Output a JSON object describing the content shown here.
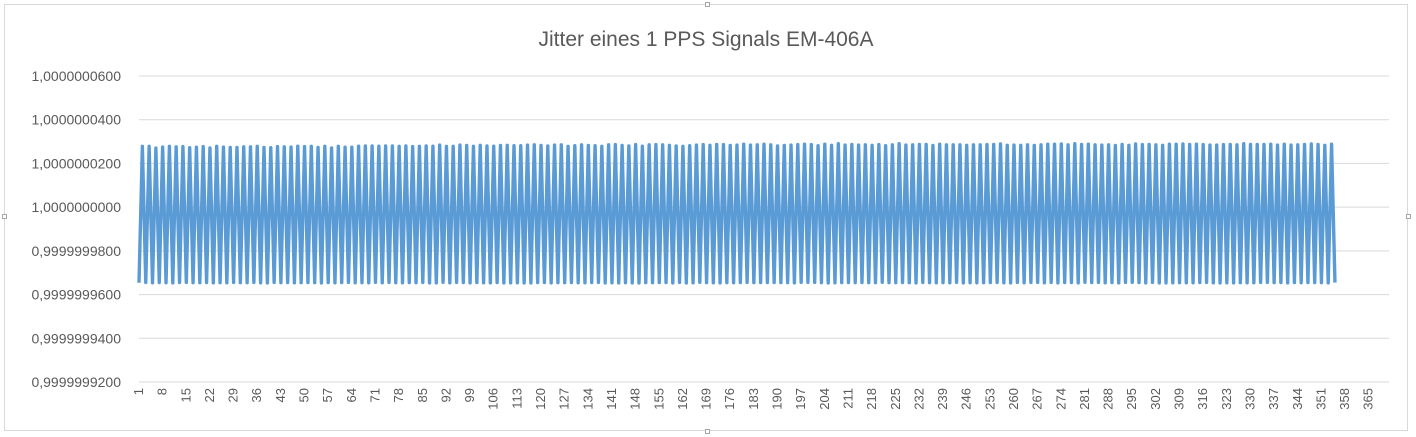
{
  "chart_data": {
    "type": "line",
    "title": "Jitter eines 1 PPS Signals EM-406A",
    "xlabel": "",
    "ylabel": "",
    "legend": "none",
    "grid": true,
    "color": "#5b9bd5",
    "ylim": [
      0.99999992,
      1.00000006
    ],
    "yticks": [
      0.99999992,
      0.99999994,
      0.99999996,
      0.99999998,
      1.0,
      1.00000002,
      1.00000004,
      1.00000006
    ],
    "ytick_labels": [
      "0,9999999200",
      "0,9999999400",
      "0,9999999600",
      "0,9999999800",
      "1,0000000000",
      "1,0000000200",
      "1,0000000400",
      "1,0000000600"
    ],
    "x_count": 371,
    "x_start": 1,
    "xtick_labels": [
      "1",
      "8",
      "15",
      "22",
      "29",
      "36",
      "43",
      "50",
      "57",
      "64",
      "71",
      "78",
      "85",
      "92",
      "99",
      "106",
      "113",
      "120",
      "127",
      "134",
      "141",
      "148",
      "155",
      "162",
      "169",
      "176",
      "183",
      "190",
      "197",
      "204",
      "211",
      "218",
      "225",
      "232",
      "239",
      "246",
      "253",
      "260",
      "267",
      "274",
      "281",
      "288",
      "295",
      "302",
      "309",
      "316",
      "323",
      "330",
      "337",
      "344",
      "351",
      "358",
      "365"
    ],
    "series": [
      {
        "values": [
          0.9999999654,
          1.0000000278,
          0.99999996552,
          1.0000000278,
          0.99999996535,
          1.000000027,
          0.99999996548,
          1.0000000275,
          0.9999999654,
          1.0000000278,
          0.99999996533,
          1.0000000276,
          0.99999996552,
          1.0000000277,
          0.99999996553,
          1.0000000272,
          0.99999996545,
          1.0000000274,
          0.99999996544,
          1.0000000277,
          0.99999996549,
          1.0000000271,
          0.99999996538,
          1.0000000278,
          0.99999996545,
          1.0000000275,
          0.99999996538,
          1.0000000273,
          0.99999996552,
          1.0000000273,
          0.99999996545,
          1.0000000276,
          0.9999999654,
          1.0000000276,
          0.99999996554,
          1.0000000278,
          0.99999996536,
          1.0000000273,
          0.99999996531,
          1.0000000272,
          0.99999996555,
          1.0000000277,
          0.99999996542,
          1.0000000276,
          0.99999996549,
          1.0000000275,
          0.99999996537,
          1.0000000279,
          0.99999996544,
          1.0000000277,
          0.99999996548,
          1.0000000278,
          0.99999996543,
          1.0000000273,
          0.9999999653,
          1.0000000278,
          0.99999996549,
          1.0000000271,
          0.99999996535,
          1.0000000278,
          0.99999996547,
          1.0000000274,
          0.99999996554,
          1.0000000274,
          0.99999996537,
          1.0000000279,
          0.9999999654,
          1.000000028,
          0.99999996536,
          1.000000028,
          0.99999996558,
          1.0000000279,
          0.99999996539,
          1.000000028,
          0.99999996557,
          1.000000028,
          0.99999996541,
          1.0000000278,
          0.99999996537,
          1.000000028,
          0.99999996551,
          1.0000000277,
          0.99999996541,
          1.0000000278,
          0.99999996552,
          1.000000028,
          0.99999996531,
          1.0000000279,
          0.99999996532,
          1.0000000284,
          0.99999996559,
          1.0000000278,
          0.99999996535,
          1.0000000278,
          0.99999996556,
          1.0000000284,
          0.99999996548,
          1.0000000282,
          0.99999996532,
          1.0000000278,
          0.9999999655,
          1.0000000283,
          0.99999996539,
          1.000000028,
          0.99999996539,
          1.0000000279,
          0.99999996551,
          1.0000000282,
          0.9999999653,
          1.0000000283,
          0.99999996535,
          1.0000000281,
          0.99999996539,
          1.0000000281,
          0.9999999653,
          1.0000000284,
          0.9999999653,
          1.0000000285,
          0.99999996546,
          1.0000000282,
          0.9999999655,
          1.000000028,
          0.99999996531,
          1.0000000284,
          0.9999999654,
          1.0000000285,
          0.99999996544,
          1.0000000278,
          0.99999996551,
          1.0000000281,
          0.99999996537,
          1.0000000285,
          0.99999996538,
          1.0000000282,
          0.99999996551,
          1.0000000281,
          0.99999996557,
          1.0000000278,
          0.99999996532,
          1.0000000285,
          0.99999996538,
          1.0000000286,
          0.99999996531,
          1.0000000282,
          0.9999999654,
          1.000000028,
          0.99999996533,
          1.0000000286,
          0.9999999653,
          1.0000000279,
          0.99999996545,
          1.0000000285,
          0.99999996545,
          1.0000000286,
          0.99999996548,
          1.0000000285,
          0.99999996551,
          1.0000000283,
          0.99999996533,
          1.000000028,
          0.99999996556,
          1.0000000278,
          0.9999999653,
          1.0000000281,
          0.99999996538,
          1.0000000284,
          0.99999996558,
          1.0000000286,
          0.99999996544,
          1.0000000283,
          0.99999996538,
          1.0000000287,
          0.99999996534,
          1.0000000286,
          0.99999996544,
          1.0000000282,
          0.99999996541,
          1.0000000284,
          0.9999999655,
          1.0000000288,
          0.99999996557,
          1.0000000284,
          0.99999996544,
          1.0000000285,
          0.9999999655,
          1.0000000288,
          0.99999996551,
          1.0000000285,
          0.99999996551,
          1.000000028,
          0.99999996544,
          1.0000000282,
          0.99999996542,
          1.0000000284,
          0.99999996535,
          1.0000000286,
          0.99999996558,
          1.0000000288,
          0.99999996558,
          1.0000000286,
          0.99999996553,
          1.0000000281,
          0.9999999654,
          1.0000000288,
          0.9999999653,
          1.0000000283,
          0.99999996535,
          1.000000029,
          0.99999996546,
          1.0000000284,
          0.9999999655,
          1.0000000287,
          0.99999996543,
          1.0000000284,
          0.99999996549,
          1.0000000285,
          0.99999996544,
          1.0000000283,
          0.99999996544,
          1.0000000286,
          0.99999996558,
          1.0000000281,
          0.99999996543,
          1.0000000285,
          0.9999999654,
          1.000000029,
          0.99999996551,
          1.0000000284,
          0.99999996544,
          1.0000000285,
          0.99999996534,
          1.0000000287,
          0.99999996552,
          1.0000000287,
          0.99999996542,
          1.0000000282,
          0.99999996538,
          1.0000000288,
          0.99999996542,
          1.0000000285,
          0.99999996539,
          1.0000000285,
          0.99999996558,
          1.0000000285,
          0.99999996533,
          1.0000000283,
          0.9999999654,
          1.0000000285,
          0.99999996535,
          1.0000000285,
          0.99999996545,
          1.0000000286,
          0.99999996548,
          1.0000000287,
          0.99999996552,
          1.0000000289,
          0.99999996536,
          1.0000000283,
          0.99999996533,
          1.0000000284,
          0.99999996554,
          1.0000000283,
          0.99999996537,
          1.0000000285,
          0.99999996556,
          1.0000000282,
          0.99999996556,
          1.0000000285,
          0.99999996537,
          1.0000000288,
          0.99999996555,
          1.0000000288,
          0.99999996531,
          1.0000000289,
          0.99999996549,
          1.0000000285,
          0.9999999655,
          1.000000029,
          0.99999996533,
          1.0000000287,
          0.99999996559,
          1.0000000288,
          0.9999999655,
          1.0000000285,
          0.99999996553,
          1.0000000284,
          0.99999996539,
          1.0000000285,
          0.99999996546,
          1.0000000282,
          0.99999996534,
          1.0000000287,
          0.99999996557,
          1.0000000283,
          0.99999996558,
          1.0000000289,
          0.99999996551,
          1.0000000286,
          0.99999996531,
          1.0000000287,
          0.99999996555,
          1.0000000285,
          0.99999996534,
          1.0000000283,
          0.99999996532,
          1.0000000288,
          0.99999996538,
          1.0000000288,
          0.99999996544,
          1.0000000289,
          0.99999996539,
          1.0000000287,
          0.99999996538,
          1.0000000288,
          0.9999999655,
          1.0000000286,
          0.99999996556,
          1.0000000284,
          0.99999996537,
          1.0000000284,
          0.9999999653,
          1.0000000286,
          0.99999996538,
          1.0000000287,
          0.99999996533,
          1.0000000285,
          0.99999996545,
          1.000000029,
          0.99999996535,
          1.0000000287,
          0.99999996537,
          1.0000000287,
          0.99999996553,
          1.0000000287,
          0.99999996554,
          1.0000000288,
          0.99999996542,
          1.0000000284,
          0.99999996551,
          1.0000000288,
          0.99999996533,
          1.0000000284,
          0.99999996551,
          1.0000000285,
          0.99999996541,
          1.0000000287,
          0.99999996546,
          1.0000000289,
          0.99999996547,
          1.0000000287,
          0.99999996544,
          1.0000000283,
          0.99999996534,
          1.0000000288,
          0.99999996548
        ]
      }
    ]
  }
}
